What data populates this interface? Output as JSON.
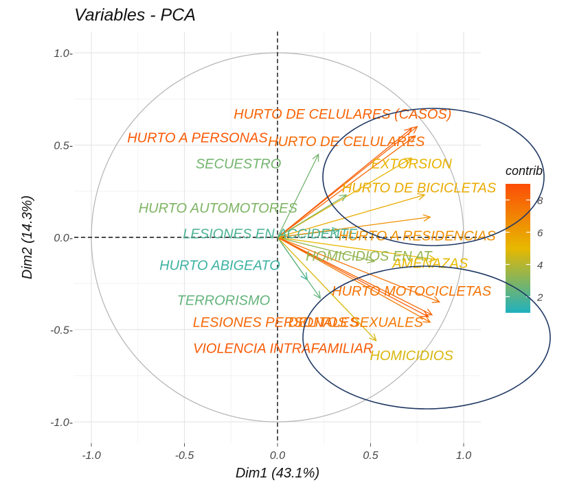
{
  "chart_data": {
    "type": "pca-variable-correlation-circle",
    "title": "Variables - PCA",
    "xlabel": "Dim1 (43.1%)",
    "ylabel": "Dim2 (14.3%)",
    "xlim": [
      -1.0,
      1.0
    ],
    "ylim": [
      -1.0,
      1.0
    ],
    "xticks": [
      -1.0,
      -0.5,
      0.0,
      0.5,
      1.0
    ],
    "yticks": [
      -1.0,
      -0.5,
      0.0,
      0.5,
      1.0
    ],
    "xtick_labels": [
      "-1.0",
      "-0.5",
      "0.0",
      "0.5",
      "1.0"
    ],
    "ytick_labels": [
      "-1.0-",
      "-0.5-",
      "0.0-",
      "0.5-",
      "1.0-"
    ],
    "grid": true,
    "unit_circle": true,
    "legend": {
      "title": "contrib",
      "position": "right",
      "range": [
        1,
        9
      ],
      "ticks": [
        2,
        4,
        6,
        8
      ],
      "tick_labels": [
        "2",
        "4",
        "6",
        "8"
      ],
      "colors": [
        "#1fb1bf",
        "#e7b800",
        "#fc4e07"
      ]
    },
    "variables": [
      {
        "name": "HURTO DE CELULARES (CASOS)",
        "x": 0.75,
        "y": 0.6,
        "contrib": 8.2,
        "label_x": 0.35,
        "label_y": 0.67
      },
      {
        "name": "HURTO A PERSONAS",
        "x": 0.72,
        "y": 0.59,
        "contrib": 8.6,
        "label_x": -0.43,
        "label_y": 0.54
      },
      {
        "name": "HURTO DE CELULARES",
        "x": 0.74,
        "y": 0.55,
        "contrib": 8.0,
        "label_x": 0.37,
        "label_y": 0.52
      },
      {
        "name": "SECUESTRO",
        "x": 0.22,
        "y": 0.45,
        "contrib": 2.7,
        "label_x": -0.21,
        "label_y": 0.4
      },
      {
        "name": "EXTORSION",
        "x": 0.72,
        "y": 0.43,
        "contrib": 5.2,
        "label_x": 0.72,
        "label_y": 0.4
      },
      {
        "name": "HURTO DE BICICLETAS",
        "x": 0.79,
        "y": 0.23,
        "contrib": 5.5,
        "label_x": 0.76,
        "label_y": 0.27
      },
      {
        "name": "HURTO AUTOMOTORES",
        "x": 0.37,
        "y": 0.23,
        "contrib": 2.9,
        "label_x": -0.32,
        "label_y": 0.16
      },
      {
        "name": "LESIONES EN ACCIDENTE",
        "x": 0.33,
        "y": 0.04,
        "contrib": 1.9,
        "label_x": -0.04,
        "label_y": 0.02
      },
      {
        "name": "HURTO A RESIDENCIAS",
        "x": 0.82,
        "y": 0.11,
        "contrib": 6.5,
        "label_x": 0.75,
        "label_y": 0.01
      },
      {
        "name": "HOMICIDIOS EN AT",
        "x": 0.52,
        "y": -0.13,
        "contrib": 3.3,
        "label_x": 0.49,
        "label_y": -0.1
      },
      {
        "name": "AMENAZAS",
        "x": 0.85,
        "y": -0.12,
        "contrib": 5.0,
        "label_x": 0.82,
        "label_y": -0.14
      },
      {
        "name": "HURTO ABIGEATO",
        "x": 0.16,
        "y": -0.23,
        "contrib": 1.6,
        "label_x": -0.31,
        "label_y": -0.15
      },
      {
        "name": "HURTO MOTOCICLETAS",
        "x": 0.87,
        "y": -0.35,
        "contrib": 7.6,
        "label_x": 0.72,
        "label_y": -0.29
      },
      {
        "name": "TERRORISMO",
        "x": 0.23,
        "y": -0.33,
        "contrib": 2.4,
        "label_x": -0.29,
        "label_y": -0.34
      },
      {
        "name": "LESIONES PERSONALES",
        "x": 0.83,
        "y": -0.42,
        "contrib": 8.1,
        "label_x": -0.01,
        "label_y": -0.46
      },
      {
        "name": "DELITOS SEXUALES",
        "x": 0.82,
        "y": -0.46,
        "contrib": 7.4,
        "label_x": 0.42,
        "label_y": -0.46
      },
      {
        "name": "HOMICIDIOS",
        "x": 0.53,
        "y": -0.56,
        "contrib": 4.7,
        "label_x": 0.72,
        "label_y": -0.64
      },
      {
        "name": "VIOLENCIA INTRAFAMILIAR",
        "x": 0.81,
        "y": -0.43,
        "contrib": 8.5,
        "label_x": 0.03,
        "label_y": -0.6
      }
    ]
  }
}
